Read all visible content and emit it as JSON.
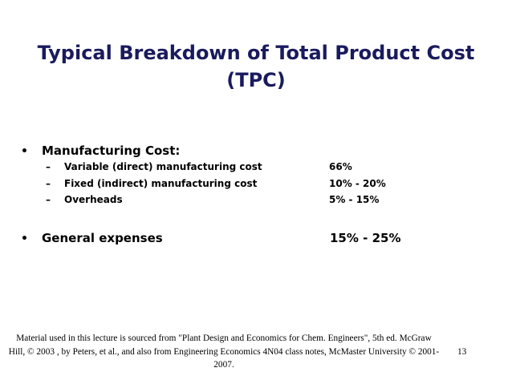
{
  "slide": {
    "title": "Typical Breakdown of Total Product Cost (TPC)",
    "bullets": [
      {
        "marker": "•",
        "label": "Manufacturing Cost:",
        "sub_items": [
          {
            "marker": "–",
            "label": "Variable (direct) manufacturing cost",
            "value": "66%"
          },
          {
            "marker": "–",
            "label": "Fixed (indirect) manufacturing cost",
            "value": "10% - 20%"
          },
          {
            "marker": "–",
            "label": "Overheads",
            "value": "5% - 15%"
          }
        ]
      },
      {
        "marker": "•",
        "label": "General expenses",
        "value": "15% - 25%"
      }
    ],
    "footer": "Material used in this lecture is sourced from \"Plant Design and Economics for Chem. Engineers\", 5th ed. McGraw Hill, © 2003 , by Peters, et al., and also from Engineering Economics 4N04 class notes, McMaster University © 2001-2007.",
    "page_number": "13",
    "colors": {
      "title": "#1a1a5e",
      "text": "#000000",
      "background": "#ffffff"
    }
  }
}
